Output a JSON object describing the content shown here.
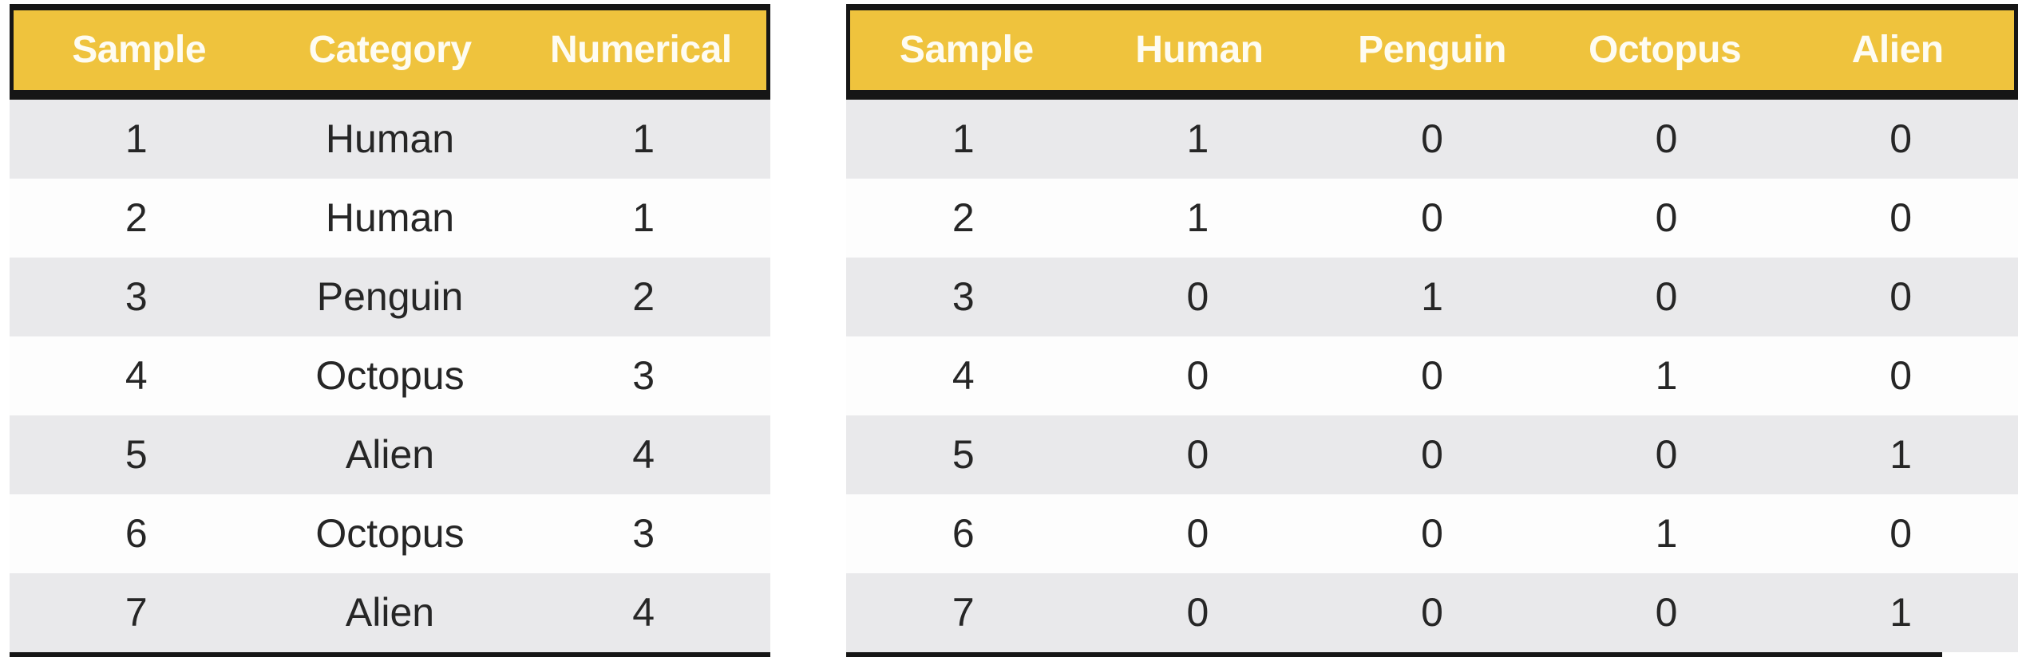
{
  "chart_data": [
    {
      "type": "table",
      "title": "",
      "columns": [
        "Sample",
        "Category",
        "Numerical"
      ],
      "rows": [
        [
          "1",
          "Human",
          "1"
        ],
        [
          "2",
          "Human",
          "1"
        ],
        [
          "3",
          "Penguin",
          "2"
        ],
        [
          "4",
          "Octopus",
          "3"
        ],
        [
          "5",
          "Alien",
          "4"
        ],
        [
          "6",
          "Octopus",
          "3"
        ],
        [
          "7",
          "Alien",
          "4"
        ]
      ]
    },
    {
      "type": "table",
      "title": "",
      "columns": [
        "Sample",
        "Human",
        "Penguin",
        "Octopus",
        "Alien"
      ],
      "rows": [
        [
          "1",
          "1",
          "0",
          "0",
          "0"
        ],
        [
          "2",
          "1",
          "0",
          "0",
          "0"
        ],
        [
          "3",
          "0",
          "1",
          "0",
          "0"
        ],
        [
          "4",
          "0",
          "0",
          "1",
          "0"
        ],
        [
          "5",
          "0",
          "0",
          "0",
          "1"
        ],
        [
          "6",
          "0",
          "0",
          "1",
          "0"
        ],
        [
          "7",
          "0",
          "0",
          "0",
          "1"
        ]
      ]
    }
  ],
  "colors": {
    "header_bg": "#efc33d",
    "header_text": "#fefcf2",
    "border_dark": "#161616",
    "row_gray": "#e9e9eb",
    "row_white": "#fdfdfd",
    "body_text": "#262626"
  }
}
